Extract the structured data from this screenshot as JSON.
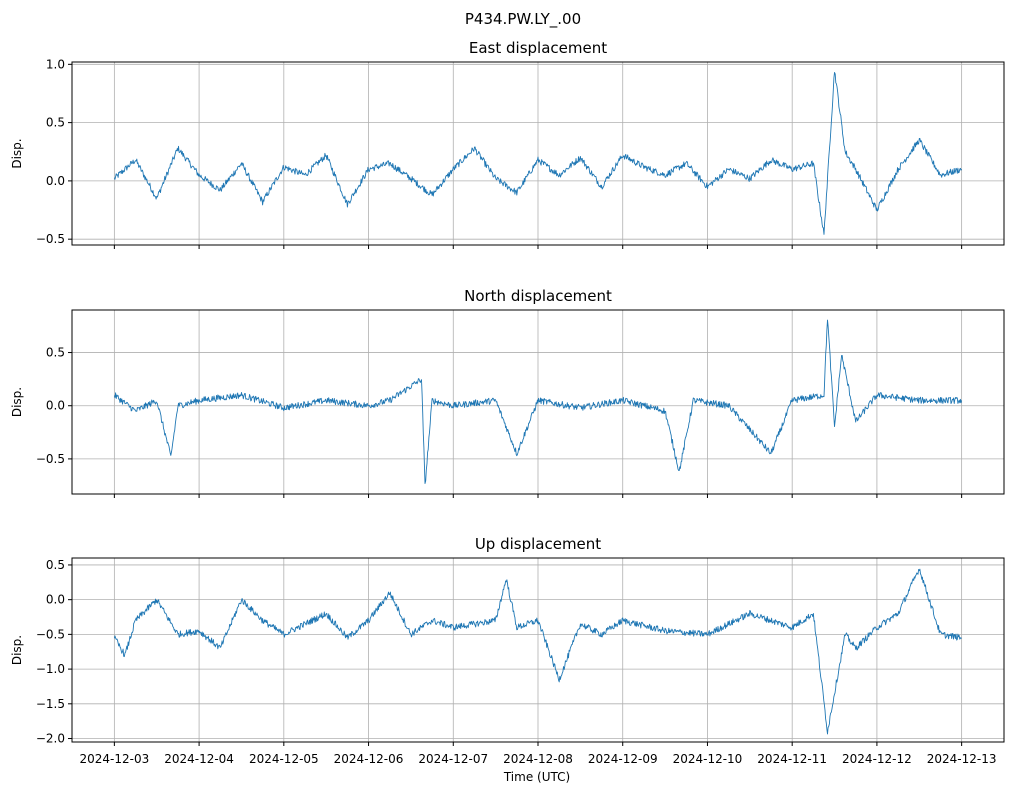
{
  "figure": {
    "suptitle": "P434.PW.LY_.00",
    "xlabel": "Time (UTC)",
    "line_color": "#1f77b4",
    "grid_color": "#b0b0b0"
  },
  "x_ticks": [
    "2024-12-03",
    "2024-12-04",
    "2024-12-05",
    "2024-12-06",
    "2024-12-07",
    "2024-12-08",
    "2024-12-09",
    "2024-12-10",
    "2024-12-11",
    "2024-12-12",
    "2024-12-13"
  ],
  "chart_data": [
    {
      "type": "line",
      "title": "East displacement",
      "ylabel": "Disp.",
      "xlim": [
        "2024-12-02T12:00",
        "2024-12-13T12:00"
      ],
      "ylim": [
        -0.55,
        1.02
      ],
      "yticks": [
        -0.5,
        0.0,
        0.5,
        1.0
      ],
      "ytick_labels": [
        "−0.5",
        "0.0",
        "0.5",
        "1.0"
      ],
      "grid": true,
      "series": [
        {
          "x": [
            "2024-12-03T00:00",
            "2024-12-03T06:00",
            "2024-12-03T12:00",
            "2024-12-03T18:00",
            "2024-12-04T00:00",
            "2024-12-04T06:00",
            "2024-12-04T12:00",
            "2024-12-04T18:00",
            "2024-12-05T00:00",
            "2024-12-05T06:00",
            "2024-12-05T12:00",
            "2024-12-05T18:00",
            "2024-12-06T00:00",
            "2024-12-06T06:00",
            "2024-12-06T12:00",
            "2024-12-06T18:00",
            "2024-12-07T00:00",
            "2024-12-07T06:00",
            "2024-12-07T12:00",
            "2024-12-07T18:00",
            "2024-12-08T00:00",
            "2024-12-08T06:00",
            "2024-12-08T12:00",
            "2024-12-08T18:00",
            "2024-12-09T00:00",
            "2024-12-09T06:00",
            "2024-12-09T12:00",
            "2024-12-09T18:00",
            "2024-12-10T00:00",
            "2024-12-10T06:00",
            "2024-12-10T12:00",
            "2024-12-10T18:00",
            "2024-12-11T00:00",
            "2024-12-11T06:00",
            "2024-12-11T09:00",
            "2024-12-11T12:00",
            "2024-12-11T15:00",
            "2024-12-11T18:00",
            "2024-12-12T00:00",
            "2024-12-12T06:00",
            "2024-12-12T12:00",
            "2024-12-12T18:00",
            "2024-12-13T00:00"
          ],
          "y": [
            0.02,
            0.18,
            -0.15,
            0.28,
            0.05,
            -0.08,
            0.15,
            -0.18,
            0.12,
            0.05,
            0.22,
            -0.2,
            0.1,
            0.15,
            0.02,
            -0.12,
            0.1,
            0.28,
            0.02,
            -0.1,
            0.18,
            0.05,
            0.2,
            -0.05,
            0.22,
            0.12,
            0.05,
            0.15,
            -0.05,
            0.1,
            0.02,
            0.18,
            0.1,
            0.15,
            -0.46,
            0.95,
            0.25,
            0.1,
            -0.25,
            0.1,
            0.35,
            0.05,
            0.1
          ]
        }
      ]
    },
    {
      "type": "line",
      "title": "North displacement",
      "ylabel": "Disp.",
      "xlim": [
        "2024-12-02T12:00",
        "2024-12-13T12:00"
      ],
      "ylim": [
        -0.83,
        0.9
      ],
      "yticks": [
        -0.5,
        0.0,
        0.5
      ],
      "ytick_labels": [
        "−0.5",
        "0.0",
        "0.5"
      ],
      "grid": true,
      "series": [
        {
          "x": [
            "2024-12-03T00:00",
            "2024-12-03T06:00",
            "2024-12-03T12:00",
            "2024-12-03T16:00",
            "2024-12-03T18:00",
            "2024-12-04T00:00",
            "2024-12-04T12:00",
            "2024-12-05T00:00",
            "2024-12-05T12:00",
            "2024-12-06T00:00",
            "2024-12-06T06:00",
            "2024-12-06T15:00",
            "2024-12-06T16:00",
            "2024-12-06T18:00",
            "2024-12-07T00:00",
            "2024-12-07T12:00",
            "2024-12-07T18:00",
            "2024-12-08T00:00",
            "2024-12-08T12:00",
            "2024-12-09T00:00",
            "2024-12-09T12:00",
            "2024-12-09T16:00",
            "2024-12-09T20:00",
            "2024-12-10T06:00",
            "2024-12-10T18:00",
            "2024-12-11T00:00",
            "2024-12-11T09:00",
            "2024-12-11T10:00",
            "2024-12-11T12:00",
            "2024-12-11T14:00",
            "2024-12-11T18:00",
            "2024-12-12T00:00",
            "2024-12-12T12:00",
            "2024-12-13T00:00"
          ],
          "y": [
            0.1,
            -0.05,
            0.05,
            -0.48,
            0.0,
            0.05,
            0.1,
            -0.02,
            0.05,
            0.0,
            0.05,
            0.25,
            -0.75,
            0.05,
            0.0,
            0.05,
            -0.45,
            0.05,
            -0.02,
            0.05,
            -0.05,
            -0.62,
            0.05,
            0.0,
            -0.45,
            0.05,
            0.1,
            0.83,
            -0.2,
            0.48,
            -0.15,
            0.1,
            0.05,
            0.05
          ]
        }
      ]
    },
    {
      "type": "line",
      "title": "Up displacement",
      "ylabel": "Disp.",
      "xlim": [
        "2024-12-02T12:00",
        "2024-12-13T12:00"
      ],
      "ylim": [
        -2.05,
        0.6
      ],
      "yticks": [
        -2.0,
        -1.5,
        -1.0,
        -0.5,
        0.0,
        0.5
      ],
      "ytick_labels": [
        "−2.0",
        "−1.5",
        "−1.0",
        "−0.5",
        "0.0",
        "0.5"
      ],
      "grid": true,
      "series": [
        {
          "x": [
            "2024-12-03T00:00",
            "2024-12-03T03:00",
            "2024-12-03T06:00",
            "2024-12-03T12:00",
            "2024-12-03T18:00",
            "2024-12-04T00:00",
            "2024-12-04T06:00",
            "2024-12-04T12:00",
            "2024-12-04T18:00",
            "2024-12-05T00:00",
            "2024-12-05T12:00",
            "2024-12-05T18:00",
            "2024-12-06T00:00",
            "2024-12-06T06:00",
            "2024-12-06T12:00",
            "2024-12-06T18:00",
            "2024-12-07T00:00",
            "2024-12-07T12:00",
            "2024-12-07T15:00",
            "2024-12-07T18:00",
            "2024-12-08T00:00",
            "2024-12-08T06:00",
            "2024-12-08T12:00",
            "2024-12-08T18:00",
            "2024-12-09T00:00",
            "2024-12-09T12:00",
            "2024-12-10T00:00",
            "2024-12-10T12:00",
            "2024-12-11T00:00",
            "2024-12-11T06:00",
            "2024-12-11T10:00",
            "2024-12-11T15:00",
            "2024-12-11T18:00",
            "2024-12-12T00:00",
            "2024-12-12T06:00",
            "2024-12-12T12:00",
            "2024-12-12T18:00",
            "2024-12-13T00:00"
          ],
          "y": [
            -0.55,
            -0.8,
            -0.3,
            0.0,
            -0.5,
            -0.45,
            -0.7,
            0.0,
            -0.3,
            -0.5,
            -0.2,
            -0.55,
            -0.3,
            0.1,
            -0.5,
            -0.3,
            -0.4,
            -0.3,
            0.3,
            -0.4,
            -0.3,
            -1.15,
            -0.35,
            -0.5,
            -0.3,
            -0.45,
            -0.5,
            -0.2,
            -0.4,
            -0.2,
            -1.9,
            -0.5,
            -0.7,
            -0.4,
            -0.2,
            0.45,
            -0.5,
            -0.55
          ]
        }
      ]
    }
  ]
}
